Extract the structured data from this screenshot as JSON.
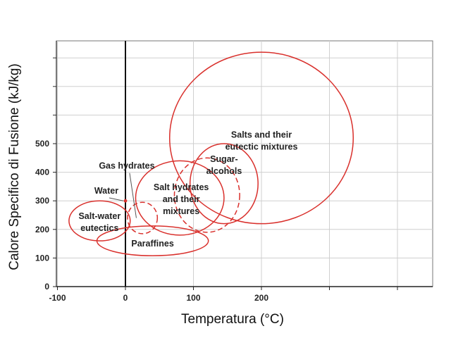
{
  "chart_data": {
    "type": "scatter",
    "title": "",
    "xlabel": "Temperatura (°C)",
    "ylabel": "Calore Specifico di Fusione (kJ/kg)",
    "xlim": [
      -100,
      450
    ],
    "ylim": [
      0,
      850
    ],
    "x_ticks": [
      -100,
      0,
      100,
      200
    ],
    "y_ticks": [
      0,
      100,
      200,
      300,
      400,
      500
    ],
    "grid": true,
    "accent_color": "#d9302c",
    "regions": [
      {
        "name": "Salts and their eutectic mixtures",
        "label_lines": [
          "Salts and their",
          "eutectic mixtures"
        ],
        "cx": 200,
        "cy": 520,
        "rx": 135,
        "ry": 300,
        "dashed": false,
        "label_x": 200,
        "label_y": 510
      },
      {
        "name": "Sugar-alcohols",
        "label_lines": [
          "Sugar-",
          "alcohols"
        ],
        "cx": 145,
        "cy": 360,
        "rx": 50,
        "ry": 140,
        "dashed": false,
        "label_x": 145,
        "label_y": 425
      },
      {
        "name": "Salt hydrates and their mixtures",
        "label_lines": [
          "Salt hydrates",
          "and their",
          "mixtures"
        ],
        "cx": 80,
        "cy": 310,
        "rx": 65,
        "ry": 130,
        "dashed": false,
        "label_x": 82,
        "label_y": 305
      },
      {
        "name": "Sugar-alcohols (dashed)",
        "label_lines": [],
        "cx": 120,
        "cy": 320,
        "rx": 48,
        "ry": 130,
        "dashed": true
      },
      {
        "name": "Gas hydrates",
        "label_lines": [
          "Gas hydrates"
        ],
        "cx": 25,
        "cy": 240,
        "rx": 22,
        "ry": 55,
        "dashed": true,
        "label_x": 2,
        "label_y": 422,
        "leader_to": [
          16,
          240
        ]
      },
      {
        "name": "Water",
        "label_lines": [
          "Water"
        ],
        "point": [
          0,
          300
        ],
        "label_x": -28,
        "label_y": 335,
        "leader_to": [
          -3,
          300
        ]
      },
      {
        "name": "Salt-water eutectics",
        "label_lines": [
          "Salt-water",
          "eutectics"
        ],
        "cx": -38,
        "cy": 230,
        "rx": 45,
        "ry": 70,
        "dashed": false,
        "label_x": -38,
        "label_y": 225
      },
      {
        "name": "Paraffines",
        "label_lines": [
          "Paraffines"
        ],
        "cx": 40,
        "cy": 160,
        "rx": 82,
        "ry": 52,
        "dashed": false,
        "label_x": 40,
        "label_y": 150
      }
    ]
  }
}
